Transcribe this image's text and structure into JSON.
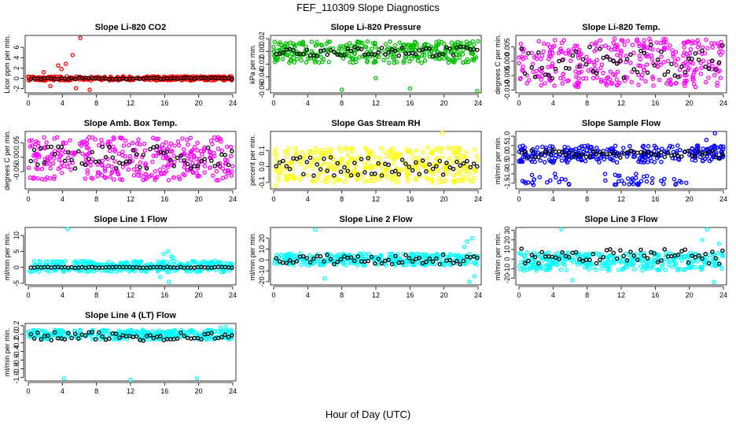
{
  "figure": {
    "title": "FEF_110309  Slope Diagnostics",
    "xlabel": "Hour of Day (UTC)"
  },
  "chart_data": [
    {
      "type": "scatter",
      "title": "Slope Li-820 CO2",
      "ylabel": "Licor ppm per min.",
      "xlim": [
        0,
        24
      ],
      "ylim": [
        -2.8,
        8.3
      ],
      "x_ticks": [
        "0",
        "4",
        "8",
        "12",
        "16",
        "20",
        "24"
      ],
      "y_ticks": [
        -2,
        0,
        2,
        4,
        6
      ],
      "color": "#ff0000",
      "grey_band": [
        -0.4,
        0.4
      ],
      "grey_outliers": [
        [
          3.5,
          2.5
        ],
        [
          3.9,
          1.8
        ],
        [
          4.4,
          2.8
        ],
        [
          5.2,
          4.5
        ],
        [
          6.1,
          7.8
        ],
        [
          7.2,
          -2.2
        ],
        [
          5.6,
          -1.9
        ],
        [
          2.6,
          -1.5
        ],
        [
          1.8,
          1.2
        ]
      ],
      "black_band": [
        -0.15,
        0.15
      ]
    },
    {
      "type": "scatter",
      "title": "Slope Li-820 Pressure",
      "ylabel": "kPa per min.",
      "xlim": [
        0,
        24
      ],
      "ylim": [
        -0.065,
        0.025
      ],
      "x_ticks": [
        "0",
        "4",
        "8",
        "12",
        "16",
        "20",
        "24"
      ],
      "y_ticks": [
        -0.06,
        -0.04,
        -0.02,
        0.0,
        0.02
      ],
      "color": "#00c000",
      "grey_band": [
        -0.018,
        0.016
      ],
      "grey_outliers": [
        [
          8.0,
          -0.06
        ],
        [
          12.0,
          -0.042
        ],
        [
          16.0,
          -0.058
        ],
        [
          23.9,
          -0.062
        ]
      ],
      "black_band": [
        -0.008,
        0.008
      ]
    },
    {
      "type": "scatter",
      "title": "Slope Li-820 Temp.",
      "ylabel": "degrees C per min.",
      "xlim": [
        0,
        24
      ],
      "ylim": [
        -0.011,
        0.009
      ],
      "x_ticks": [
        "0",
        "4",
        "8",
        "12",
        "16",
        "20",
        "24"
      ],
      "y_ticks": [
        -0.01,
        -0.005,
        0.0,
        0.005
      ],
      "color": "#ff00ff",
      "grey_band": [
        -0.009,
        0.008
      ],
      "grey_outliers": [],
      "black_band": [
        -0.006,
        0.006
      ]
    },
    {
      "type": "scatter",
      "title": "Slope Amb. Box Temp.",
      "ylabel": "degrees C per min.",
      "xlim": [
        0,
        24
      ],
      "ylim": [
        -0.11,
        0.09
      ],
      "x_ticks": [
        "0",
        "4",
        "8",
        "12",
        "16",
        "20",
        "24"
      ],
      "y_ticks": [
        -0.05,
        0.0,
        0.05
      ],
      "color": "#ff00ff",
      "grey_band": [
        -0.08,
        0.07
      ],
      "grey_outliers": [],
      "black_band": [
        -0.04,
        0.04
      ]
    },
    {
      "type": "scatter",
      "title": "Slope Gas Stream RH",
      "ylabel": "percent per min.",
      "xlim": [
        0,
        24
      ],
      "ylim": [
        -0.14,
        0.22
      ],
      "x_ticks": [
        "0",
        "4",
        "8",
        "12",
        "16",
        "20",
        "24"
      ],
      "y_ticks": [
        -0.1,
        0.0,
        0.1
      ],
      "color": "#ffff00",
      "grey_band": [
        -0.1,
        0.12
      ],
      "grey_outliers": [
        [
          19.8,
          0.21
        ],
        [
          0.2,
          -0.12
        ]
      ],
      "black_band": [
        -0.06,
        0.06
      ]
    },
    {
      "type": "scatter",
      "title": "Slope Sample Flow",
      "ylabel": "ml/min per min.",
      "xlim": [
        0,
        24
      ],
      "ylim": [
        -1.8,
        1.25
      ],
      "x_ticks": [
        "0",
        "4",
        "8",
        "12",
        "16",
        "20",
        "24"
      ],
      "y_ticks": [
        -1.5,
        -1.0,
        -0.5,
        0.0,
        0.5,
        1.0
      ],
      "color": "#0000ff",
      "grey_band": [
        -0.4,
        0.5
      ],
      "grey_band2": [
        -1.6,
        -1.0
      ],
      "grey_outliers": [
        [
          23.0,
          1.15
        ],
        [
          22.0,
          0.8
        ]
      ],
      "black_band": [
        -0.15,
        0.25
      ]
    },
    {
      "type": "scatter",
      "title": "Slope Line 1 Flow",
      "ylabel": "ml/min per min.",
      "xlim": [
        0,
        24
      ],
      "ylim": [
        -5.5,
        12.5
      ],
      "x_ticks": [
        "0",
        "4",
        "8",
        "12",
        "16",
        "20",
        "24"
      ],
      "y_ticks": [
        -5,
        0,
        5,
        10
      ],
      "color": "#00ffff",
      "grey_band": [
        -1.5,
        2.0
      ],
      "grey_outliers": [
        [
          4.6,
          12
        ],
        [
          16.4,
          5
        ],
        [
          15.9,
          4.2
        ],
        [
          16.8,
          3.5
        ],
        [
          15.5,
          -3
        ],
        [
          16.5,
          -4.5
        ],
        [
          17.0,
          3.0
        ]
      ],
      "black_band": [
        -0.15,
        0.15
      ]
    },
    {
      "type": "scatter",
      "title": "Slope Line 2 Flow",
      "ylabel": "ml/min per min.",
      "xlim": [
        0,
        24
      ],
      "ylim": [
        -23,
        30
      ],
      "x_ticks": [
        "0",
        "4",
        "8",
        "12",
        "16",
        "20",
        "24"
      ],
      "y_ticks": [
        -20,
        -10,
        0,
        10,
        20
      ],
      "color": "#00ffff",
      "grey_band": [
        -5,
        6
      ],
      "grey_outliers": [
        [
          4.9,
          28
        ],
        [
          6.0,
          -17
        ],
        [
          22.7,
          17
        ],
        [
          23.3,
          20
        ],
        [
          23.0,
          -20
        ],
        [
          23.6,
          -15
        ],
        [
          22.4,
          12
        ]
      ],
      "black_band": [
        -4,
        5
      ]
    },
    {
      "type": "scatter",
      "title": "Slope Line 3 Flow",
      "ylabel": "ml/min per min.",
      "xlim": [
        0,
        24
      ],
      "ylim": [
        -27,
        33
      ],
      "x_ticks": [
        "0",
        "4",
        "8",
        "12",
        "16",
        "20",
        "24"
      ],
      "y_ticks": [
        -20,
        -10,
        0,
        10,
        20,
        30
      ],
      "color": "#00ffff",
      "grey_band": [
        -12,
        7
      ],
      "grey_outliers": [
        [
          5.0,
          31
        ],
        [
          6.3,
          -22
        ],
        [
          22.1,
          31
        ],
        [
          22.9,
          -24
        ],
        [
          23.5,
          16
        ],
        [
          21.5,
          20
        ]
      ],
      "black_band": [
        -5,
        12
      ]
    },
    {
      "type": "scatter",
      "title": "Slope Line 4 (LT) Flow",
      "ylabel": "ml/min per min.",
      "xlim": [
        0,
        24
      ],
      "ylim": [
        -1.08,
        0.25
      ],
      "x_ticks": [
        "0",
        "4",
        "8",
        "12",
        "16",
        "20",
        "24"
      ],
      "y_ticks": [
        -1.0,
        -0.8,
        -0.6,
        -0.4,
        -0.2,
        0.0,
        0.2
      ],
      "color": "#00ffff",
      "grey_band": [
        -0.12,
        0.1
      ],
      "grey_outliers": [
        [
          4.2,
          -1.02
        ],
        [
          12.0,
          -1.05
        ],
        [
          19.8,
          -1.02
        ],
        [
          23.2,
          0.17
        ],
        [
          22.6,
          0.15
        ]
      ],
      "black_band": [
        -0.15,
        0.05
      ]
    }
  ]
}
